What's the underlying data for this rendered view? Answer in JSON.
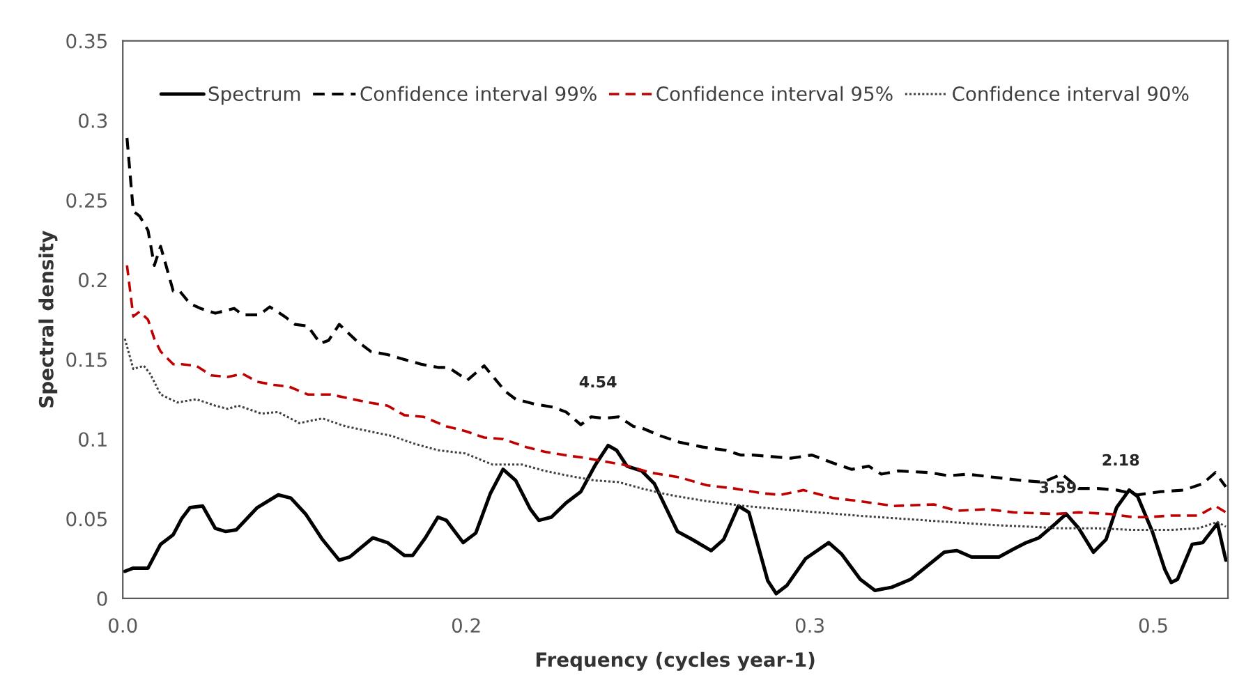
{
  "chart_data": {
    "type": "line",
    "xlabel": "Frequency (cycles year-1)",
    "ylabel": "Spectral density",
    "xlim": [
      0,
      0.526
    ],
    "xticks": [
      {
        "value": 0,
        "label": "0.0"
      },
      {
        "value": 0.1635,
        "label": "0.2"
      },
      {
        "value": 0.327,
        "label": "0.3"
      },
      {
        "value": 0.4905,
        "label": "0.5"
      }
    ],
    "ylim": [
      0,
      0.35
    ],
    "yticks": [
      0,
      0.05,
      0.1,
      0.15,
      0.2,
      0.25,
      0.3,
      0.35
    ],
    "grid": false,
    "legend": "top",
    "annotations": [
      "4.54",
      "3.59",
      "2.18"
    ],
    "series": [
      {
        "name": "Spectrum",
        "color": "#000000",
        "line_style": "solid",
        "x": [
          0.001,
          0.005,
          0.012,
          0.018,
          0.024,
          0.028,
          0.032,
          0.038,
          0.044,
          0.049,
          0.054,
          0.064,
          0.074,
          0.08,
          0.087,
          0.095,
          0.103,
          0.108,
          0.119,
          0.126,
          0.134,
          0.138,
          0.144,
          0.15,
          0.154,
          0.162,
          0.168,
          0.175,
          0.181,
          0.187,
          0.194,
          0.198,
          0.204,
          0.211,
          0.218,
          0.225,
          0.231,
          0.235,
          0.24,
          0.247,
          0.253,
          0.264,
          0.271,
          0.28,
          0.286,
          0.293,
          0.298,
          0.307,
          0.311,
          0.316,
          0.325,
          0.336,
          0.342,
          0.351,
          0.358,
          0.366,
          0.375,
          0.391,
          0.397,
          0.404,
          0.417,
          0.424,
          0.43,
          0.436,
          0.444,
          0.449,
          0.455,
          0.462,
          0.468,
          0.473,
          0.479,
          0.483,
          0.49,
          0.496,
          0.499,
          0.502,
          0.509,
          0.514,
          0.521,
          0.525
        ],
        "values": [
          0.017,
          0.019,
          0.019,
          0.034,
          0.04,
          0.05,
          0.057,
          0.058,
          0.044,
          0.042,
          0.043,
          0.057,
          0.065,
          0.063,
          0.053,
          0.037,
          0.024,
          0.026,
          0.038,
          0.035,
          0.027,
          0.027,
          0.038,
          0.051,
          0.049,
          0.035,
          0.041,
          0.066,
          0.081,
          0.074,
          0.056,
          0.049,
          0.051,
          0.06,
          0.067,
          0.084,
          0.096,
          0.093,
          0.083,
          0.08,
          0.072,
          0.042,
          0.037,
          0.03,
          0.037,
          0.058,
          0.054,
          0.011,
          0.003,
          0.008,
          0.025,
          0.035,
          0.028,
          0.012,
          0.005,
          0.007,
          0.012,
          0.029,
          0.03,
          0.026,
          0.026,
          0.031,
          0.035,
          0.038,
          0.047,
          0.053,
          0.044,
          0.029,
          0.037,
          0.057,
          0.068,
          0.064,
          0.042,
          0.018,
          0.01,
          0.012,
          0.034,
          0.035,
          0.047,
          0.024
        ]
      },
      {
        "name": "Confidence interval 99%",
        "color": "#000000",
        "line_style": "dashed",
        "x": [
          0.002,
          0.005,
          0.008,
          0.012,
          0.015,
          0.018,
          0.024,
          0.027,
          0.032,
          0.037,
          0.044,
          0.053,
          0.057,
          0.065,
          0.07,
          0.077,
          0.082,
          0.088,
          0.094,
          0.098,
          0.103,
          0.111,
          0.118,
          0.126,
          0.134,
          0.142,
          0.15,
          0.155,
          0.164,
          0.172,
          0.182,
          0.187,
          0.196,
          0.205,
          0.211,
          0.218,
          0.223,
          0.229,
          0.236,
          0.243,
          0.247,
          0.256,
          0.265,
          0.276,
          0.287,
          0.294,
          0.3,
          0.309,
          0.318,
          0.328,
          0.338,
          0.347,
          0.355,
          0.361,
          0.369,
          0.384,
          0.393,
          0.402,
          0.415,
          0.428,
          0.438,
          0.447,
          0.455,
          0.464,
          0.473,
          0.483,
          0.494,
          0.505,
          0.514,
          0.52,
          0.525
        ],
        "values": [
          0.289,
          0.243,
          0.24,
          0.231,
          0.209,
          0.221,
          0.193,
          0.193,
          0.185,
          0.182,
          0.179,
          0.182,
          0.178,
          0.178,
          0.183,
          0.177,
          0.172,
          0.171,
          0.16,
          0.162,
          0.172,
          0.162,
          0.155,
          0.153,
          0.15,
          0.147,
          0.145,
          0.145,
          0.137,
          0.146,
          0.13,
          0.125,
          0.122,
          0.12,
          0.117,
          0.109,
          0.114,
          0.113,
          0.114,
          0.108,
          0.107,
          0.102,
          0.098,
          0.095,
          0.093,
          0.09,
          0.09,
          0.089,
          0.088,
          0.09,
          0.085,
          0.081,
          0.083,
          0.078,
          0.08,
          0.079,
          0.077,
          0.078,
          0.076,
          0.074,
          0.073,
          0.078,
          0.069,
          0.069,
          0.068,
          0.065,
          0.067,
          0.068,
          0.072,
          0.079,
          0.07
        ]
      },
      {
        "name": "Confidence interval 95%",
        "color": "#c00000",
        "line_style": "dashed",
        "x": [
          0.002,
          0.005,
          0.008,
          0.012,
          0.015,
          0.018,
          0.024,
          0.028,
          0.035,
          0.042,
          0.05,
          0.057,
          0.064,
          0.072,
          0.079,
          0.088,
          0.099,
          0.106,
          0.117,
          0.126,
          0.134,
          0.143,
          0.154,
          0.163,
          0.172,
          0.181,
          0.192,
          0.201,
          0.21,
          0.221,
          0.229,
          0.238,
          0.251,
          0.265,
          0.278,
          0.291,
          0.304,
          0.313,
          0.324,
          0.338,
          0.351,
          0.367,
          0.386,
          0.397,
          0.411,
          0.424,
          0.444,
          0.455,
          0.47,
          0.481,
          0.488,
          0.499,
          0.512,
          0.52,
          0.525
        ],
        "values": [
          0.209,
          0.177,
          0.18,
          0.175,
          0.163,
          0.155,
          0.147,
          0.147,
          0.146,
          0.14,
          0.139,
          0.141,
          0.136,
          0.134,
          0.133,
          0.128,
          0.128,
          0.126,
          0.123,
          0.121,
          0.115,
          0.114,
          0.108,
          0.105,
          0.101,
          0.1,
          0.095,
          0.092,
          0.09,
          0.088,
          0.086,
          0.084,
          0.079,
          0.076,
          0.071,
          0.069,
          0.066,
          0.065,
          0.068,
          0.063,
          0.061,
          0.058,
          0.059,
          0.055,
          0.056,
          0.054,
          0.053,
          0.054,
          0.053,
          0.051,
          0.051,
          0.052,
          0.052,
          0.058,
          0.054
        ]
      },
      {
        "name": "Confidence interval 90%",
        "color": "#404040",
        "line_style": "dotted",
        "x": [
          0.001,
          0.005,
          0.01,
          0.013,
          0.018,
          0.026,
          0.035,
          0.044,
          0.05,
          0.055,
          0.066,
          0.074,
          0.084,
          0.095,
          0.106,
          0.117,
          0.128,
          0.139,
          0.15,
          0.163,
          0.176,
          0.19,
          0.201,
          0.212,
          0.225,
          0.236,
          0.247,
          0.26,
          0.278,
          0.296,
          0.313,
          0.331,
          0.349,
          0.371,
          0.393,
          0.415,
          0.432,
          0.446,
          0.463,
          0.481,
          0.499,
          0.512,
          0.521,
          0.525
        ],
        "values": [
          0.163,
          0.144,
          0.146,
          0.141,
          0.128,
          0.123,
          0.125,
          0.121,
          0.119,
          0.121,
          0.116,
          0.117,
          0.11,
          0.113,
          0.108,
          0.105,
          0.102,
          0.097,
          0.093,
          0.091,
          0.084,
          0.084,
          0.08,
          0.077,
          0.074,
          0.073,
          0.069,
          0.065,
          0.061,
          0.058,
          0.056,
          0.054,
          0.052,
          0.05,
          0.048,
          0.046,
          0.045,
          0.044,
          0.044,
          0.043,
          0.043,
          0.044,
          0.048,
          0.045
        ]
      }
    ]
  }
}
